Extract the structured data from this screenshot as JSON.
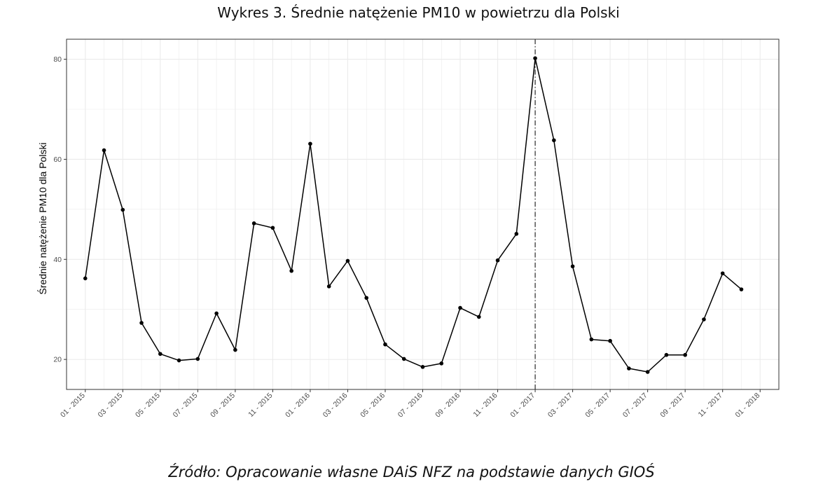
{
  "title": "Wykres 3. Średnie natężenie PM10 w powietrzu dla Polski",
  "source": "Źródło: Opracowanie własne DAiS NFZ na podstawie danych GIOŚ",
  "chart_data": {
    "type": "line",
    "title": "Wykres 3. Średnie natężenie PM10 w powietrzu dla Polski",
    "xlabel": "",
    "ylabel": "Średnie natężenie PM10 dla Polski",
    "ylim": [
      14,
      84
    ],
    "yticks": [
      20,
      40,
      60,
      80
    ],
    "xlim": [
      "2014-12",
      "2018-02"
    ],
    "xticks": [
      "01 - 2015",
      "03 - 2015",
      "05 - 2015",
      "07 - 2015",
      "09 - 2015",
      "11 - 2015",
      "01 - 2016",
      "03 - 2016",
      "05 - 2016",
      "07 - 2016",
      "09 - 2016",
      "11 - 2016",
      "01 - 2017",
      "03 - 2017",
      "05 - 2017",
      "07 - 2017",
      "09 - 2017",
      "11 - 2017",
      "01 - 2018"
    ],
    "grid": true,
    "vline": "2017-01",
    "colors": {
      "line": "#000000",
      "grid": "#ebebeb",
      "border": "#333333",
      "vline": "#000000"
    },
    "series": [
      {
        "x": [
          "2015-01",
          "2015-02",
          "2015-03",
          "2015-04",
          "2015-05",
          "2015-06",
          "2015-07",
          "2015-08",
          "2015-09",
          "2015-10",
          "2015-11",
          "2015-12",
          "2016-01",
          "2016-02",
          "2016-03",
          "2016-04",
          "2016-05",
          "2016-06",
          "2016-07",
          "2016-08",
          "2016-09",
          "2016-10",
          "2016-11",
          "2016-12",
          "2017-01",
          "2017-02",
          "2017-03",
          "2017-04",
          "2017-05",
          "2017-06",
          "2017-07",
          "2017-08",
          "2017-09",
          "2017-10",
          "2017-11",
          "2017-12"
        ],
        "values": [
          36.2,
          61.8,
          49.9,
          27.3,
          21.1,
          19.8,
          20.1,
          29.2,
          21.9,
          47.2,
          46.3,
          37.7,
          63.1,
          34.6,
          39.7,
          32.3,
          23.0,
          20.1,
          18.5,
          19.2,
          30.3,
          28.5,
          39.8,
          45.1,
          80.2,
          63.8,
          38.6,
          24.0,
          23.7,
          18.2,
          17.5,
          20.9,
          20.9,
          28.0,
          37.2,
          34.0
        ]
      }
    ]
  }
}
